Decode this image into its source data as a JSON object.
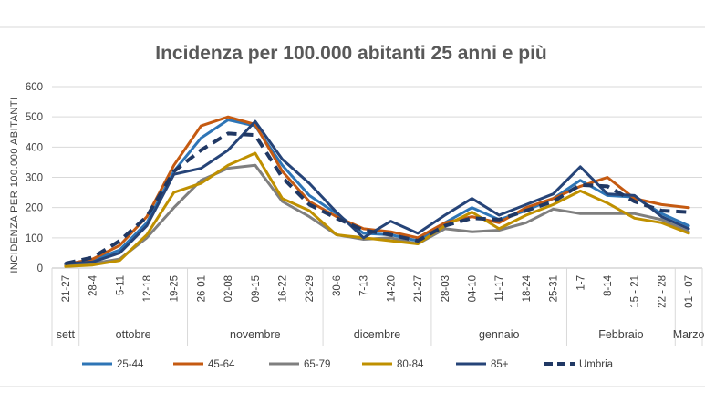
{
  "chart_data": {
    "type": "line",
    "title": "Incidenza per 100.000 abitanti 25 anni e più",
    "ylabel": "INCIDENZA PER 100.000 ABITANTI",
    "xlabel": "",
    "ylim": [
      0,
      600
    ],
    "yticks": [
      "0",
      "100",
      "200",
      "300",
      "400",
      "500",
      "600"
    ],
    "grid": true,
    "legend_position": "bottom",
    "categories": [
      "21-27",
      "28-4",
      "5-11",
      "12-18",
      "19-25",
      "26-01",
      "02-08",
      "09-15",
      "16-22",
      "23-29",
      "30-6",
      "7-13",
      "14-20",
      "21-27",
      "28-03",
      "04-10",
      "11-17",
      "18-24",
      "25-31",
      "1-7",
      "8-14",
      "15 - 21",
      "22 - 28",
      "01 - 07"
    ],
    "months": [
      {
        "label": "sett",
        "start": 0,
        "end": 0
      },
      {
        "label": "ottobre",
        "start": 1,
        "end": 4
      },
      {
        "label": "novembre",
        "start": 5,
        "end": 9
      },
      {
        "label": "dicembre",
        "start": 10,
        "end": 13
      },
      {
        "label": "gennaio",
        "start": 14,
        "end": 18
      },
      {
        "label": "Febbraio",
        "start": 19,
        "end": 22
      },
      {
        "label": "Marzo",
        "start": 23,
        "end": 23
      }
    ],
    "series": [
      {
        "name": "25-44",
        "color": "#2E75B6",
        "dashed": false,
        "values": [
          10,
          25,
          60,
          150,
          320,
          430,
          490,
          470,
          340,
          240,
          180,
          115,
          110,
          90,
          150,
          200,
          160,
          190,
          230,
          290,
          240,
          235,
          180,
          140
        ]
      },
      {
        "name": "45-64",
        "color": "#C55A11",
        "dashed": false,
        "values": [
          12,
          30,
          75,
          170,
          340,
          470,
          500,
          475,
          320,
          220,
          170,
          130,
          120,
          100,
          150,
          170,
          150,
          200,
          230,
          270,
          300,
          230,
          210,
          200
        ]
      },
      {
        "name": "65-79",
        "color": "#7F7F7F",
        "dashed": false,
        "values": [
          8,
          15,
          30,
          100,
          200,
          290,
          330,
          340,
          220,
          170,
          110,
          95,
          100,
          80,
          130,
          120,
          125,
          150,
          195,
          180,
          180,
          180,
          160,
          120
        ]
      },
      {
        "name": "80-84",
        "color": "#BF9000",
        "dashed": false,
        "values": [
          5,
          10,
          25,
          110,
          250,
          280,
          340,
          380,
          230,
          190,
          110,
          100,
          90,
          80,
          140,
          185,
          130,
          175,
          210,
          255,
          215,
          165,
          150,
          115
        ]
      },
      {
        "name": "85+",
        "color": "#264478",
        "dashed": false,
        "values": [
          15,
          20,
          50,
          140,
          310,
          330,
          390,
          485,
          360,
          280,
          185,
          100,
          155,
          115,
          175,
          230,
          175,
          210,
          245,
          335,
          245,
          240,
          170,
          130
        ]
      },
      {
        "name": "Umbria",
        "color": "#203864",
        "dashed": true,
        "values": [
          15,
          35,
          90,
          170,
          320,
          390,
          445,
          440,
          300,
          210,
          165,
          125,
          110,
          90,
          140,
          165,
          160,
          190,
          220,
          275,
          270,
          220,
          190,
          185
        ]
      }
    ]
  }
}
